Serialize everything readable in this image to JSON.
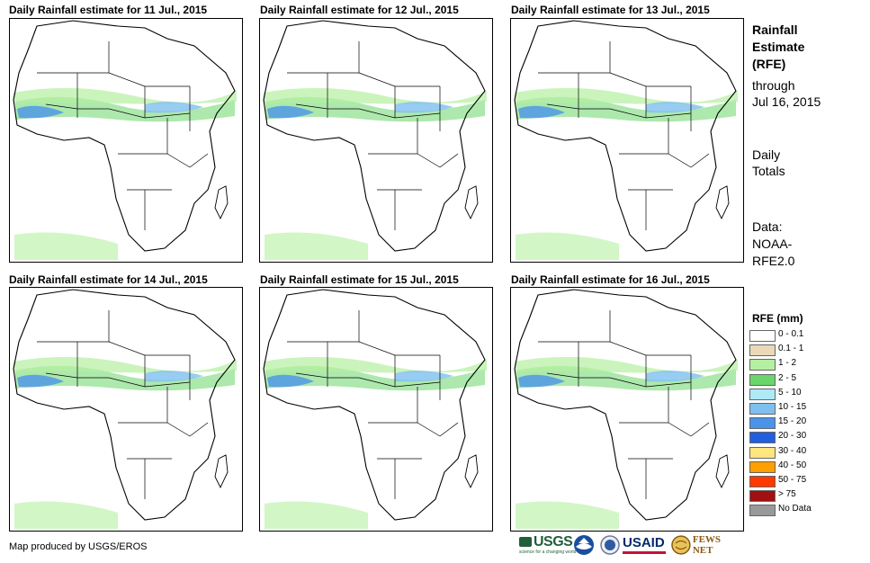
{
  "panels": [
    {
      "title": "Daily Rainfall estimate for 11 Jul., 2015"
    },
    {
      "title": "Daily Rainfall estimate for 12 Jul., 2015"
    },
    {
      "title": "Daily Rainfall estimate for 13 Jul., 2015"
    },
    {
      "title": "Daily Rainfall estimate for 14 Jul., 2015"
    },
    {
      "title": "Daily Rainfall estimate for 15 Jul., 2015"
    },
    {
      "title": "Daily Rainfall estimate for 16 Jul., 2015"
    }
  ],
  "sidebar": {
    "heading_line1": "Rainfall",
    "heading_line2": "Estimate",
    "heading_line3": "(RFE)",
    "through_label": "through",
    "through_date": "Jul 16, 2015",
    "totals_line1": "Daily",
    "totals_line2": "Totals",
    "data_line1": "Data:",
    "data_line2": "NOAA-",
    "data_line3": "RFE2.0"
  },
  "legend": {
    "title": "RFE (mm)",
    "items": [
      {
        "label": "0 - 0.1",
        "color": "#ffffff"
      },
      {
        "label": "0.1 - 1",
        "color": "#e9d9b8"
      },
      {
        "label": "1 - 2",
        "color": "#b4f0a0"
      },
      {
        "label": "2 - 5",
        "color": "#6ad56a"
      },
      {
        "label": "5 - 10",
        "color": "#aeeaf5"
      },
      {
        "label": "10 - 15",
        "color": "#7fbff0"
      },
      {
        "label": "15 - 20",
        "color": "#4a93ea"
      },
      {
        "label": "20 - 30",
        "color": "#1f5fe0"
      },
      {
        "label": "30 - 40",
        "color": "#ffe680"
      },
      {
        "label": "40 - 50",
        "color": "#ff9f00"
      },
      {
        "label": "50 - 75",
        "color": "#ff3a00"
      },
      {
        "label": "> 75",
        "color": "#a01010"
      },
      {
        "label": "No Data",
        "color": "#999999"
      }
    ]
  },
  "credit": "Map produced by USGS/EROS",
  "logos": {
    "usgs": "USGS",
    "usgs_tagline": "science for a changing world",
    "usaid": "USAID",
    "fewsnet": "FEWS NET"
  }
}
